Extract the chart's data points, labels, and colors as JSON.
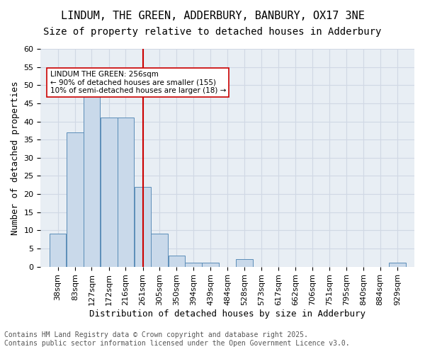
{
  "title_line1": "LINDUM, THE GREEN, ADDERBURY, BANBURY, OX17 3NE",
  "title_line2": "Size of property relative to detached houses in Adderbury",
  "xlabel": "Distribution of detached houses by size in Adderbury",
  "ylabel": "Number of detached properties",
  "bins": [
    38,
    83,
    127,
    172,
    216,
    261,
    305,
    350,
    394,
    439,
    484,
    528,
    573,
    617,
    662,
    706,
    751,
    795,
    840,
    884,
    929
  ],
  "values": [
    9,
    37,
    48,
    41,
    41,
    22,
    9,
    3,
    1,
    1,
    0,
    2,
    0,
    0,
    0,
    0,
    0,
    0,
    0,
    0,
    1
  ],
  "bar_color": "#c9d9ea",
  "bar_edge_color": "#5b8db8",
  "vline_x": 261,
  "vline_color": "#cc0000",
  "annotation_text": "LINDUM THE GREEN: 256sqm\n← 90% of detached houses are smaller (155)\n10% of semi-detached houses are larger (18) →",
  "annotation_box_color": "#ffffff",
  "annotation_box_edge_color": "#cc0000",
  "ylim": [
    0,
    60
  ],
  "yticks": [
    0,
    5,
    10,
    15,
    20,
    25,
    30,
    35,
    40,
    45,
    50,
    55,
    60
  ],
  "grid_color": "#d0d8e4",
  "background_color": "#e8eef4",
  "footer_line1": "Contains HM Land Registry data © Crown copyright and database right 2025.",
  "footer_line2": "Contains public sector information licensed under the Open Government Licence v3.0.",
  "title_fontsize": 11,
  "subtitle_fontsize": 10,
  "axis_label_fontsize": 9,
  "tick_fontsize": 8,
  "footer_fontsize": 7
}
